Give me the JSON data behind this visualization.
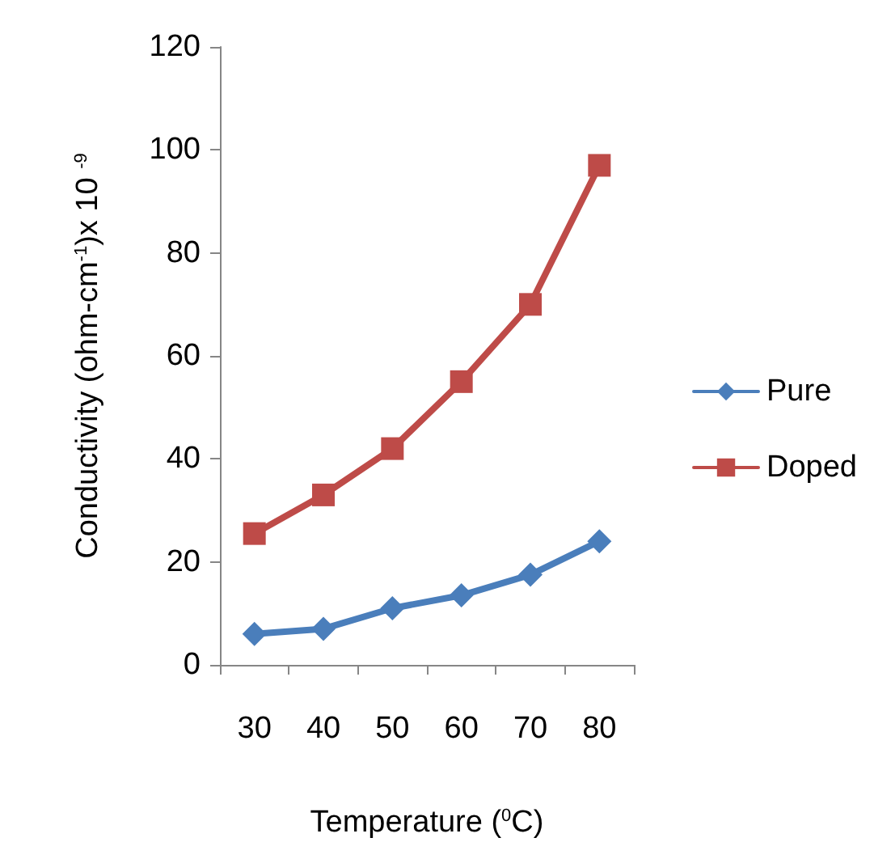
{
  "chart_data": {
    "type": "line",
    "xlabel": "Temperature ($^{0}$C)",
    "ylabel": "Conductivity (ohm-cm$^{-1}$)x 10 $^{-9}$",
    "categories": [
      "30",
      "40",
      "50",
      "60",
      "70",
      "80"
    ],
    "series": [
      {
        "name": "Pure",
        "color": "#4a7ebb",
        "marker": "diamond",
        "values": [
          6,
          7,
          11,
          13.5,
          17.5,
          24
        ]
      },
      {
        "name": "Doped",
        "color": "#be4b48",
        "marker": "square",
        "values": [
          25.5,
          33,
          42,
          55,
          70,
          97
        ]
      }
    ],
    "ylim": [
      0,
      120
    ],
    "yticks": [
      0,
      20,
      40,
      60,
      80,
      100,
      120
    ],
    "grid": false,
    "legend": "right",
    "line_style": "solid"
  }
}
